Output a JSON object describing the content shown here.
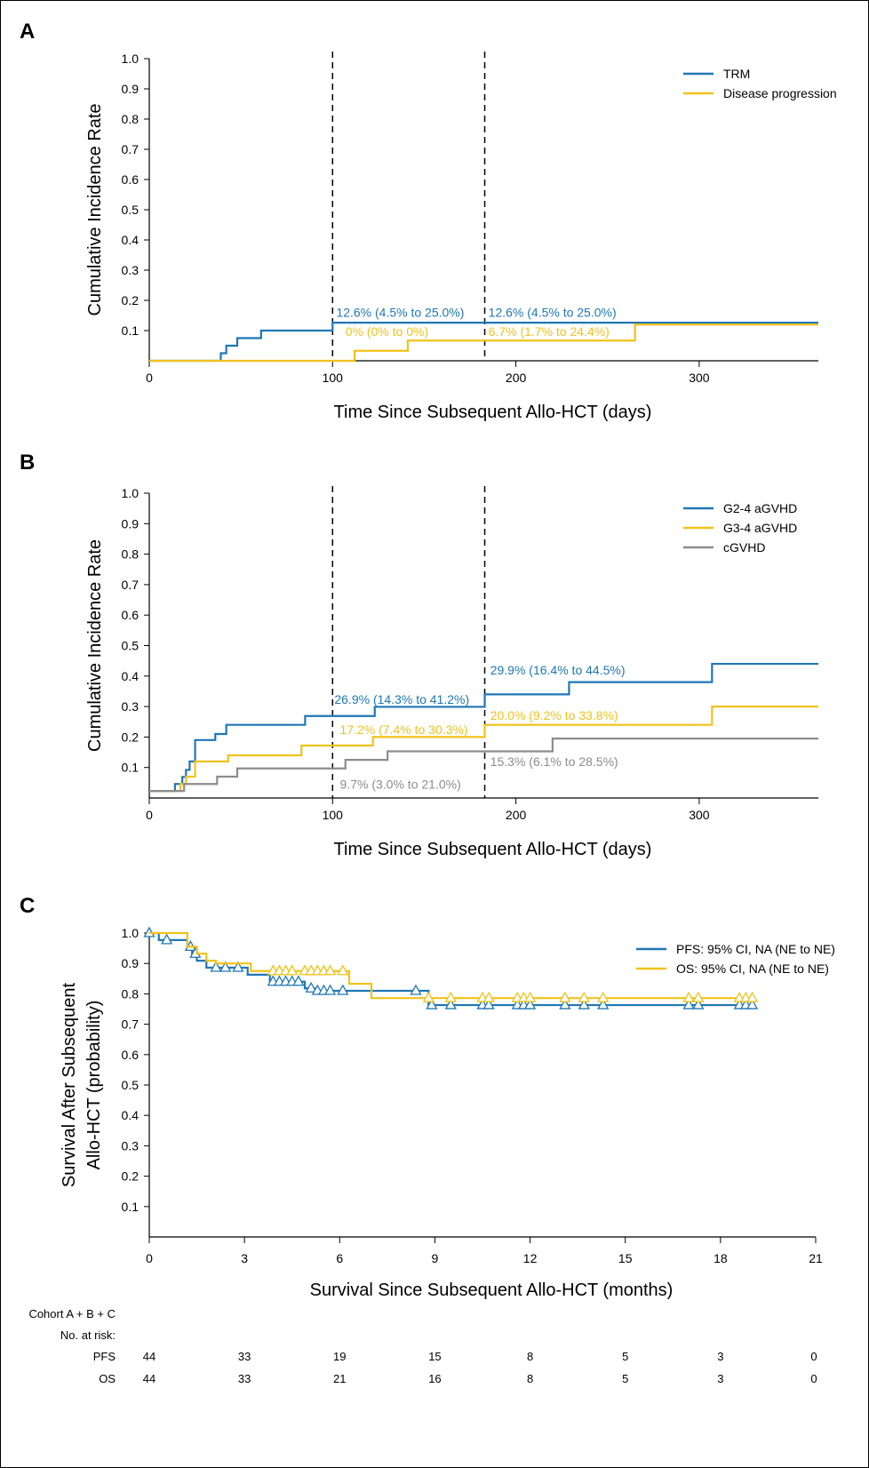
{
  "colors": {
    "blue": "#1f77b4",
    "gold": "#f1c21b",
    "gray": "#8c8c8c",
    "black": "#000000"
  },
  "chart_data": [
    {
      "panel": "A",
      "type": "line",
      "step": true,
      "xlabel": "Time Since Subsequent Allo-HCT (days)",
      "ylabel": "Cumulative Incidence Rate",
      "xlim": [
        0,
        365
      ],
      "ylim": [
        0,
        1.0
      ],
      "xticks": [
        "0",
        "100",
        "200",
        "300"
      ],
      "yticks": [
        "0.1",
        "0.2",
        "0.3",
        "0.4",
        "0.5",
        "0.6",
        "0.7",
        "0.8",
        "0.9",
        "1.0"
      ],
      "vlines": [
        100,
        183
      ],
      "legend_position": "top-right",
      "series": [
        {
          "name": "TRM",
          "color": "blue",
          "x": [
            0,
            39,
            42,
            48,
            61,
            100,
            365
          ],
          "y": [
            0,
            0.025,
            0.05,
            0.075,
            0.1,
            0.126,
            0.126
          ]
        },
        {
          "name": "Disease progression",
          "color": "gold",
          "x": [
            0,
            112,
            141,
            265,
            365
          ],
          "y": [
            0,
            0.033,
            0.067,
            0.12,
            0.12
          ]
        }
      ],
      "annotations": [
        {
          "text": "12.6% (4.5% to 25.0%)",
          "x": 102,
          "y": 0.146,
          "color": "blue"
        },
        {
          "text": "12.6% (4.5% to 25.0%)",
          "x": 185,
          "y": 0.146,
          "color": "blue"
        },
        {
          "text": "0% (0% to 0%)",
          "x": 107,
          "y": 0.082,
          "color": "gold"
        },
        {
          "text": "6.7% (1.7% to 24.4%)",
          "x": 185,
          "y": 0.082,
          "color": "gold"
        }
      ]
    },
    {
      "panel": "B",
      "type": "line",
      "step": true,
      "xlabel": "Time Since Subsequent Allo-HCT (days)",
      "ylabel": "Cumulative Incidence Rate",
      "xlim": [
        0,
        365
      ],
      "ylim": [
        0,
        1.0
      ],
      "xticks": [
        "0",
        "100",
        "200",
        "300"
      ],
      "yticks": [
        "0.1",
        "0.2",
        "0.3",
        "0.4",
        "0.5",
        "0.6",
        "0.7",
        "0.8",
        "0.9",
        "1.0"
      ],
      "vlines": [
        100,
        183
      ],
      "legend_position": "top-right",
      "series": [
        {
          "name": "G2-4 aGVHD",
          "color": "blue",
          "x": [
            0,
            14,
            18,
            20,
            22,
            25,
            36,
            42,
            85,
            123,
            183,
            229,
            307,
            365
          ],
          "y": [
            0.023,
            0.046,
            0.069,
            0.092,
            0.12,
            0.19,
            0.21,
            0.24,
            0.269,
            0.299,
            0.34,
            0.38,
            0.44,
            0.44
          ]
        },
        {
          "name": "G3-4 aGVHD",
          "color": "gold",
          "x": [
            0,
            17,
            20,
            25,
            43,
            83,
            122,
            183,
            307,
            365
          ],
          "y": [
            0.023,
            0.046,
            0.07,
            0.12,
            0.14,
            0.172,
            0.2,
            0.24,
            0.3,
            0.3
          ]
        },
        {
          "name": "cGVHD",
          "color": "gray",
          "x": [
            0,
            19,
            37,
            48,
            107,
            130,
            220,
            365
          ],
          "y": [
            0.023,
            0.046,
            0.07,
            0.097,
            0.125,
            0.153,
            0.195,
            0.195
          ]
        }
      ],
      "annotations": [
        {
          "text": "26.9% (14.3% to 41.2%)",
          "x": 101,
          "y": 0.309,
          "color": "blue"
        },
        {
          "text": "29.9% (16.4% to 44.5%)",
          "x": 186,
          "y": 0.405,
          "color": "blue"
        },
        {
          "text": "17.2% (7.4% to 30.3%)",
          "x": 104,
          "y": 0.21,
          "color": "gold"
        },
        {
          "text": "20.0% (9.2% to 33.8%)",
          "x": 186,
          "y": 0.256,
          "color": "gold"
        },
        {
          "text": "9.7% (3.0% to 21.0%)",
          "x": 104,
          "y": 0.03,
          "color": "gray"
        },
        {
          "text": "15.3% (6.1% to 28.5%)",
          "x": 186,
          "y": 0.105,
          "color": "gray"
        }
      ]
    },
    {
      "panel": "C",
      "type": "line",
      "step": true,
      "xlabel": "Survival Since Subsequent Allo-HCT (months)",
      "ylabel": [
        "Survival After Subsequent",
        "Allo-HCT (probability)"
      ],
      "xlim": [
        0,
        21
      ],
      "ylim": [
        0,
        1.0
      ],
      "xticks": [
        "0",
        "3",
        "6",
        "9",
        "12",
        "15",
        "18",
        "21"
      ],
      "yticks": [
        "0.1",
        "0.2",
        "0.3",
        "0.4",
        "0.5",
        "0.6",
        "0.7",
        "0.8",
        "0.9",
        "1.0"
      ],
      "legend_position": "top-right",
      "series": [
        {
          "name": "PFS: 95% CI, NA (NE to NE)",
          "color": "blue",
          "x": [
            0,
            0.3,
            1.2,
            1.35,
            1.5,
            1.8,
            3.1,
            3.8,
            4.9,
            5.2,
            8.8,
            19.0
          ],
          "y": [
            1.0,
            0.977,
            0.955,
            0.932,
            0.909,
            0.886,
            0.863,
            0.84,
            0.818,
            0.81,
            0.763,
            0.763
          ],
          "censor_x": [
            0,
            0.55,
            1.3,
            1.45,
            2.1,
            2.4,
            2.8,
            3.9,
            4.1,
            4.3,
            4.5,
            4.7,
            5.1,
            5.3,
            5.5,
            5.7,
            6.1,
            8.4,
            8.9,
            9.5,
            10.5,
            10.7,
            11.6,
            11.8,
            12.0,
            13.1,
            13.7,
            14.3,
            17.0,
            17.3,
            18.6,
            18.8,
            19.0
          ]
        },
        {
          "name": "OS: 95% CI,  NA (NE to NE)",
          "color": "gold",
          "x": [
            0,
            1.2,
            1.5,
            1.8,
            2.1,
            3.2,
            6.3,
            7.0,
            19.0
          ],
          "y": [
            1.0,
            0.955,
            0.932,
            0.909,
            0.9,
            0.875,
            0.833,
            0.786,
            0.786
          ],
          "censor_x": [
            3.9,
            4.1,
            4.3,
            4.5,
            4.9,
            5.1,
            5.3,
            5.5,
            5.7,
            6.1,
            8.8,
            9.5,
            10.5,
            10.7,
            11.6,
            11.8,
            12.0,
            13.1,
            13.7,
            14.3,
            17.0,
            17.3,
            18.6,
            18.8,
            19.0
          ]
        }
      ],
      "risk_table": {
        "cohort_label": "Cohort A + B + C",
        "header": "No. at risk:",
        "rows": [
          {
            "label": "PFS",
            "values": [
              "44",
              "33",
              "19",
              "15",
              "8",
              "5",
              "3",
              "0"
            ]
          },
          {
            "label": "OS",
            "values": [
              "44",
              "33",
              "21",
              "16",
              "8",
              "5",
              "3",
              "0"
            ]
          }
        ]
      }
    }
  ]
}
